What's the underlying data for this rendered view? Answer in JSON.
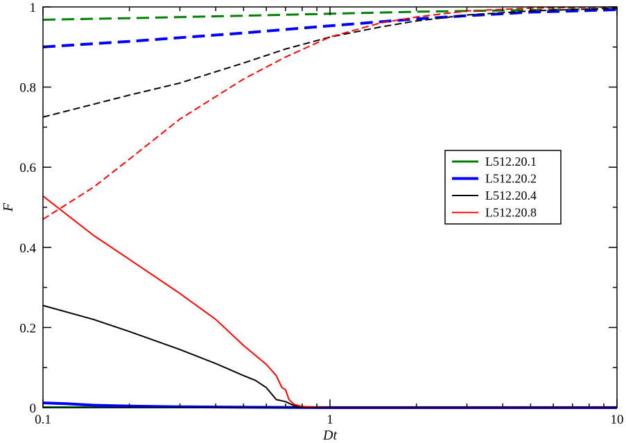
{
  "chart_data": {
    "type": "line",
    "title": "",
    "xlabel": "Dt",
    "ylabel": "F",
    "xscale": "log",
    "xlim": [
      0.1,
      10
    ],
    "ylim": [
      0,
      1
    ],
    "x_ticks": [
      "0.1",
      "1",
      "10"
    ],
    "y_ticks": [
      "0",
      "0.2",
      "0.4",
      "0.6",
      "0.8",
      "1"
    ],
    "grid": false,
    "legend_position": "right",
    "legend": [
      "L512.20.1",
      "L512.20.2",
      "L512.20.4",
      "L512.20.8"
    ],
    "series": [
      {
        "name": "L512.20.1",
        "style": "dashed",
        "color": "#008000",
        "width": 3,
        "x": [
          0.1,
          0.2,
          0.5,
          1,
          2,
          5,
          10
        ],
        "y": [
          0.968,
          0.972,
          0.978,
          0.983,
          0.988,
          0.992,
          0.995
        ]
      },
      {
        "name": "L512.20.1",
        "style": "solid",
        "color": "#008000",
        "width": 3,
        "in_legend": false,
        "x": [
          0.1,
          0.3,
          1,
          3,
          10
        ],
        "y": [
          0.001,
          0.001,
          0.001,
          0.001,
          0.001
        ]
      },
      {
        "name": "L512.20.2",
        "style": "dashed",
        "color": "#0000ff",
        "width": 4,
        "x": [
          0.1,
          0.2,
          0.5,
          1,
          2,
          3,
          5,
          10
        ],
        "y": [
          0.9,
          0.914,
          0.935,
          0.953,
          0.97,
          0.978,
          0.987,
          0.993
        ]
      },
      {
        "name": "L512.20.2",
        "style": "solid",
        "color": "#0000ff",
        "width": 4,
        "in_legend": false,
        "x": [
          0.1,
          0.12,
          0.15,
          0.2,
          0.3,
          0.5,
          1,
          10
        ],
        "y": [
          0.012,
          0.01,
          0.006,
          0.004,
          0.002,
          0.001,
          0.0,
          0.0
        ]
      },
      {
        "name": "L512.20.4",
        "style": "dashed",
        "color": "#000000",
        "width": 2,
        "x": [
          0.1,
          0.2,
          0.3,
          0.5,
          0.7,
          1,
          1.5,
          2,
          3,
          5,
          10
        ],
        "y": [
          0.725,
          0.78,
          0.81,
          0.86,
          0.895,
          0.925,
          0.95,
          0.965,
          0.98,
          0.99,
          0.997
        ]
      },
      {
        "name": "L512.20.4",
        "style": "solid",
        "color": "#000000",
        "width": 2,
        "in_legend": false,
        "x": [
          0.1,
          0.15,
          0.2,
          0.3,
          0.4,
          0.5,
          0.55,
          0.6,
          0.65,
          0.7,
          0.75,
          0.8,
          0.9,
          1,
          10
        ],
        "y": [
          0.255,
          0.22,
          0.19,
          0.145,
          0.11,
          0.08,
          0.068,
          0.05,
          0.02,
          0.015,
          0.005,
          0.002,
          0.001,
          0.0,
          0.0
        ]
      },
      {
        "name": "L512.20.8",
        "style": "dashed",
        "color": "#ff0000",
        "width": 2,
        "x": [
          0.1,
          0.15,
          0.2,
          0.3,
          0.5,
          0.7,
          1,
          1.5,
          2,
          3,
          5,
          10
        ],
        "y": [
          0.47,
          0.55,
          0.62,
          0.72,
          0.82,
          0.875,
          0.925,
          0.96,
          0.975,
          0.99,
          0.997,
          1.0
        ]
      },
      {
        "name": "L512.20.8",
        "style": "solid",
        "color": "#ff0000",
        "width": 2,
        "in_legend": false,
        "x": [
          0.1,
          0.15,
          0.2,
          0.3,
          0.4,
          0.5,
          0.6,
          0.65,
          0.68,
          0.7,
          0.72,
          0.75,
          0.8,
          0.9,
          1,
          10
        ],
        "y": [
          0.528,
          0.43,
          0.37,
          0.285,
          0.22,
          0.155,
          0.108,
          0.08,
          0.05,
          0.045,
          0.02,
          0.008,
          0.003,
          0.001,
          0.0,
          0.0
        ]
      }
    ]
  }
}
